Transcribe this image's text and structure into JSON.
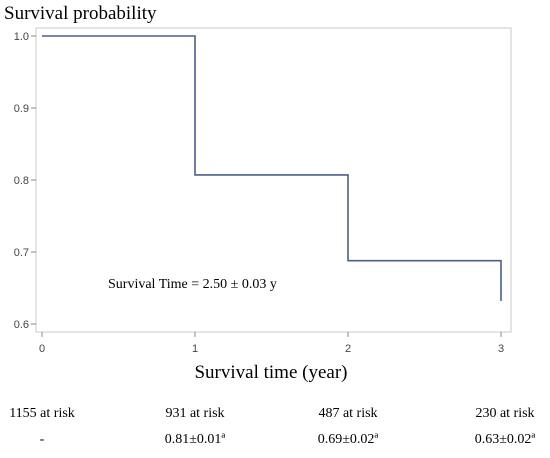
{
  "chart_data": {
    "type": "line",
    "step": "post",
    "ylabel": "Survival probability",
    "xlabel": "Survival time (year)",
    "xlim": [
      0,
      3
    ],
    "ylim": [
      0.6,
      1.0
    ],
    "x_ticks": [
      "0",
      "1",
      "2",
      "3"
    ],
    "y_ticks": [
      "0.6",
      "0.7",
      "0.8",
      "0.9",
      "1.0"
    ],
    "grid": false,
    "series": [
      {
        "x": [
          0,
          1,
          1,
          2,
          2,
          3,
          3
        ],
        "y": [
          1.0,
          1.0,
          0.807,
          0.807,
          0.688,
          0.688,
          0.632
        ]
      }
    ],
    "line_color": "#4a5f8e",
    "annotation": "Survival Time = 2.50 ± 0.03 y",
    "risk_table": {
      "at_risk": [
        "1155 at risk",
        "931 at risk",
        "487 at risk",
        "230 at risk"
      ],
      "rates": [
        "-",
        "0.81±0.01ª",
        "0.69±0.02ª",
        "0.63±0.02ª"
      ]
    }
  }
}
